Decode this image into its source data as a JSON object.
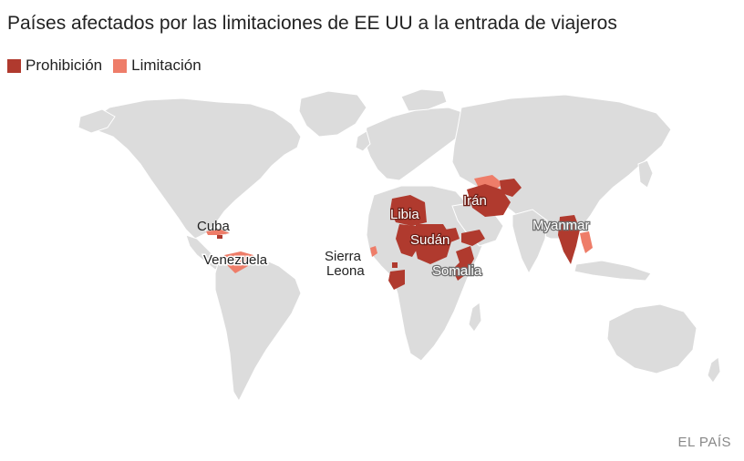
{
  "title": "Países afectados por las limitaciones de EE UU a la entrada de viajeros",
  "legend": [
    {
      "label": "Prohibición",
      "color": "#b03a2e"
    },
    {
      "label": "Limitación",
      "color": "#ee7d69"
    }
  ],
  "colors": {
    "land": "#dcdcdc",
    "coast": "#ffffff",
    "ban": "#b03a2e",
    "limit": "#ee7d69"
  },
  "labels": {
    "cuba": "Cuba",
    "venezuela": "Venezuela",
    "sierra_leona_1": "Sierra",
    "sierra_leona_2": "Leona",
    "libia": "Libia",
    "sudan": "Sudán",
    "somalia": "Somalia",
    "iran": "Irán",
    "myanmar": "Myanmar"
  },
  "credit": "EL PAÍS"
}
